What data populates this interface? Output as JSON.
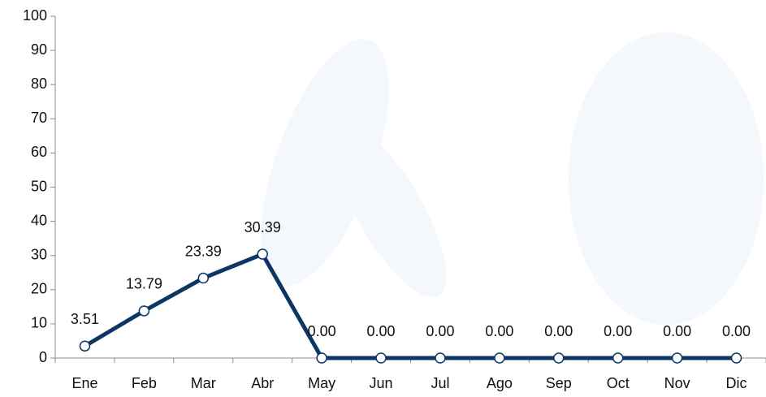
{
  "chart_data": {
    "type": "line",
    "categories": [
      "Ene",
      "Feb",
      "Mar",
      "Abr",
      "May",
      "Jun",
      "Jul",
      "Ago",
      "Sep",
      "Oct",
      "Nov",
      "Dic"
    ],
    "series": [
      {
        "name": null,
        "color": "#0c3663",
        "values": [
          3.51,
          13.79,
          23.39,
          30.39,
          0,
          0,
          0,
          0,
          0,
          0,
          0,
          0
        ],
        "value_labels": [
          "3.51",
          "13.79",
          "23.39",
          "30.39",
          "0.00",
          "0.00",
          "0.00",
          "0.00",
          "0.00",
          "0.00",
          "0.00",
          "0.00"
        ]
      }
    ],
    "ylim": [
      0,
      100
    ],
    "yticks": [
      0,
      10,
      20,
      30,
      40,
      50,
      60,
      70,
      80,
      90,
      100
    ],
    "grid": false
  }
}
